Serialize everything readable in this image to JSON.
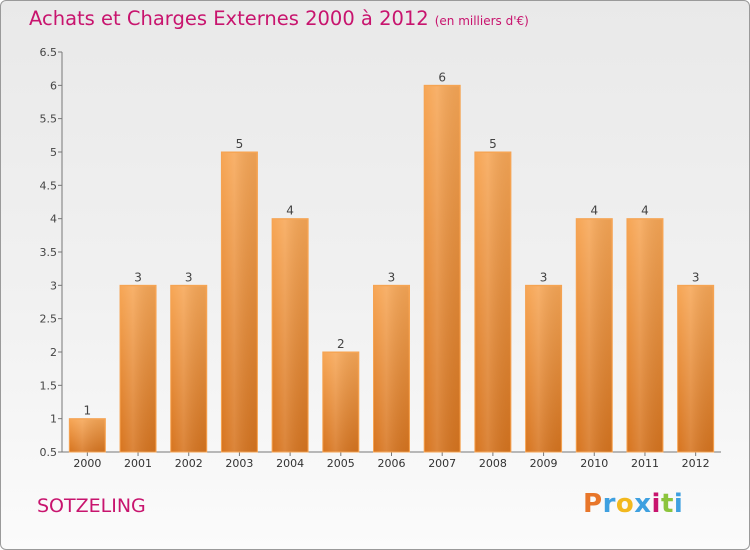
{
  "title": "Achats et Charges Externes 2000 à 2012",
  "subtitle": "(en milliers d'€)",
  "location": "SOTZELING",
  "logo": {
    "letters": [
      "P",
      "r",
      "o",
      "x",
      "i",
      "t",
      "i"
    ],
    "colors": [
      "#e8762a",
      "#3ea0e0",
      "#f2b81e",
      "#3ea0e0",
      "#c8146e",
      "#8cc43c",
      "#3ea0e0"
    ]
  },
  "colors": {
    "accent": "#c8146e",
    "bar_light": "#f7a555",
    "bar_dark": "#d77520",
    "bar_edge": "#f4a050"
  },
  "chart_data": {
    "type": "bar",
    "title": "Achats et Charges Externes 2000 à 2012",
    "xlabel": "",
    "ylabel": "",
    "categories": [
      "2000",
      "2001",
      "2002",
      "2003",
      "2004",
      "2005",
      "2006",
      "2007",
      "2008",
      "2009",
      "2010",
      "2011",
      "2012"
    ],
    "values": [
      1,
      3,
      3,
      5,
      4,
      2,
      3,
      6,
      5,
      3,
      4,
      4,
      3
    ],
    "labels": [
      "1",
      "3",
      "3",
      "5",
      "4",
      "2",
      "3",
      "6",
      "5",
      "3",
      "4",
      "4",
      "3"
    ],
    "ylim": [
      0.5,
      6.5
    ],
    "yticks": [
      0.5,
      1,
      1.5,
      2,
      2.5,
      3,
      3.5,
      4,
      4.5,
      5,
      5.5,
      6,
      6.5
    ],
    "ytick_labels": [
      "0.5",
      "1",
      "1.5",
      "2",
      "2.5",
      "3",
      "3.5",
      "4",
      "4.5",
      "5",
      "5.5",
      "6",
      "6.5"
    ],
    "grid": false
  }
}
